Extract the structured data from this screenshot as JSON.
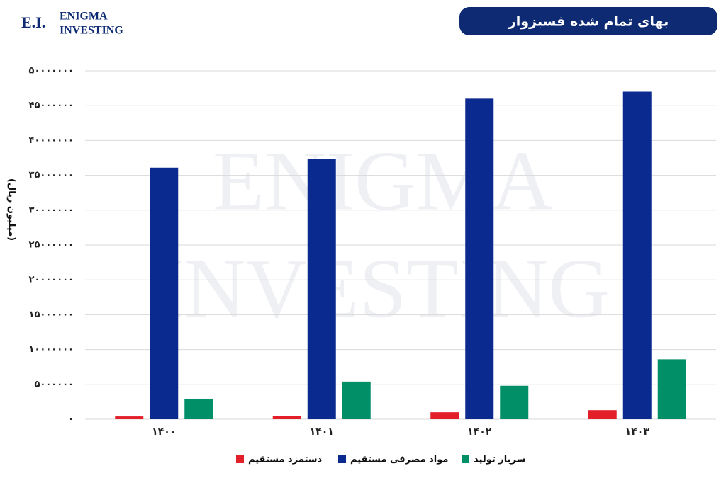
{
  "brand": {
    "short": "E.I.",
    "line1": "Enigma",
    "line2": "Investing"
  },
  "chart_data": {
    "type": "bar",
    "title": "بهای تمام شده فسبزوار",
    "y_label": "(میلیون ریال)",
    "categories": [
      "۱۴۰۰",
      "۱۴۰۱",
      "۱۴۰۲",
      "۱۴۰۳"
    ],
    "series": [
      {
        "name": "دستمزد مستقیم",
        "color": "#e3202a",
        "values": [
          400000,
          500000,
          1000000,
          1300000
        ]
      },
      {
        "name": "مواد مصرفی مستقیم",
        "color": "#0a2a8f",
        "values": [
          36100000,
          37300000,
          46000000,
          47000000
        ]
      },
      {
        "name": "سربار تولید",
        "color": "#008f66",
        "values": [
          2950000,
          5400000,
          4800000,
          8600000
        ]
      }
    ],
    "ylim": [
      0,
      50000000
    ],
    "yticks": [
      {
        "value": 0,
        "label": "۰"
      },
      {
        "value": 5000000,
        "label": "۵۰۰۰۰۰۰"
      },
      {
        "value": 10000000,
        "label": "۱۰۰۰۰۰۰۰"
      },
      {
        "value": 15000000,
        "label": "۱۵۰۰۰۰۰۰"
      },
      {
        "value": 20000000,
        "label": "۲۰۰۰۰۰۰۰"
      },
      {
        "value": 25000000,
        "label": "۲۵۰۰۰۰۰۰"
      },
      {
        "value": 30000000,
        "label": "۳۰۰۰۰۰۰۰"
      },
      {
        "value": 35000000,
        "label": "۳۵۰۰۰۰۰۰"
      },
      {
        "value": 40000000,
        "label": "۴۰۰۰۰۰۰۰"
      },
      {
        "value": 45000000,
        "label": "۴۵۰۰۰۰۰۰"
      },
      {
        "value": 50000000,
        "label": "۵۰۰۰۰۰۰۰"
      }
    ],
    "grid": true
  }
}
